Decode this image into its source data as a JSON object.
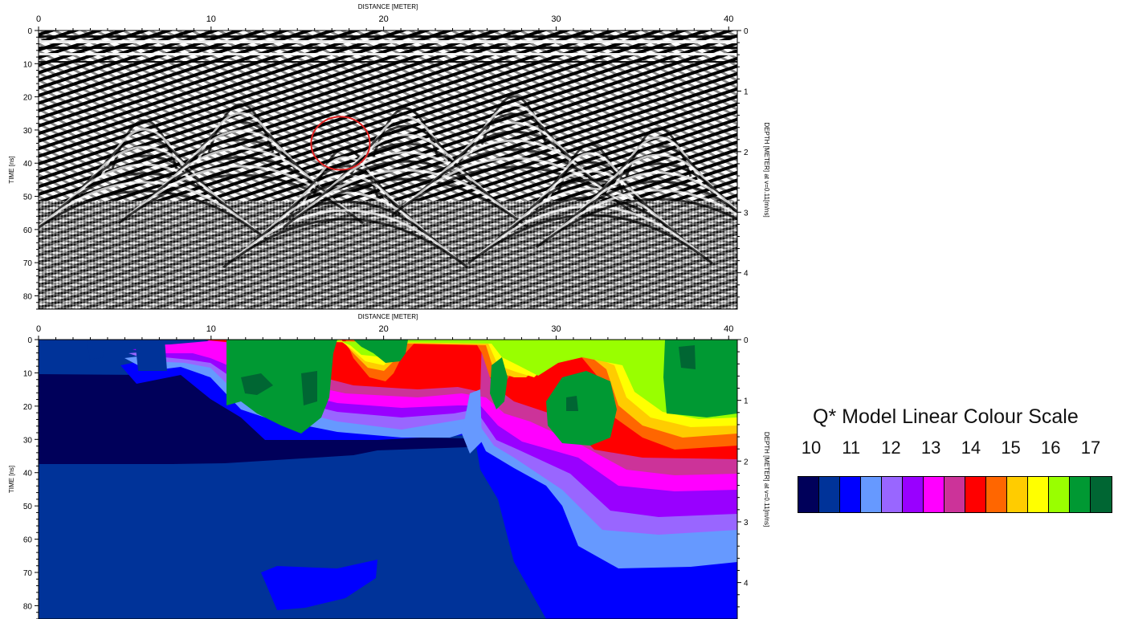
{
  "chart_data": [
    {
      "type": "heatmap",
      "name": "gpr-radargram",
      "xlabel": "DISTANCE [METER]",
      "ylabel": "TIME [ns]",
      "y2label": "DEPTH [METER] at v=0.11[m/ns]",
      "xlim": [
        0,
        40.5
      ],
      "ylim": [
        0,
        84
      ],
      "y2lim": [
        0,
        4.6
      ],
      "xticks": [
        "0",
        "10",
        "20",
        "30",
        "40"
      ],
      "yticks": [
        "0",
        "10",
        "20",
        "30",
        "40",
        "50",
        "60",
        "70",
        "80"
      ],
      "y2ticks": [
        "0",
        "1",
        "2",
        "3",
        "4"
      ],
      "colormap": "grayscale",
      "annotation": {
        "shape": "circle",
        "color": "#e02020",
        "center": [
          17.5,
          34
        ],
        "radius_x": 1.7,
        "radius_y": 8
      }
    },
    {
      "type": "heatmap",
      "name": "q-model-section",
      "xlabel": "DISTANCE [METER]",
      "ylabel": "TIME [ns]",
      "y2label": "DEPTH [METER] at v=0.11[m/ns]",
      "xlim": [
        0,
        40.5
      ],
      "ylim": [
        0,
        84
      ],
      "y2lim": [
        0,
        4.6
      ],
      "xticks": [
        "0",
        "10",
        "20",
        "30",
        "40"
      ],
      "yticks": [
        "0",
        "10",
        "20",
        "30",
        "40",
        "50",
        "60",
        "70",
        "80"
      ],
      "y2ticks": [
        "0",
        "1",
        "2",
        "3",
        "4"
      ],
      "zlim": [
        10,
        17
      ],
      "colormap": "q-star-linear"
    }
  ],
  "legend": {
    "title": "Q* Model Linear Colour Scale",
    "tick_labels": [
      "10",
      "11",
      "12",
      "13",
      "14",
      "15",
      "16",
      "17"
    ],
    "colors": [
      "#00005a",
      "#003399",
      "#0000ff",
      "#6699ff",
      "#9966ff",
      "#9900ff",
      "#ff00ff",
      "#cc3399",
      "#ff0000",
      "#ff6600",
      "#ffcc00",
      "#ffff00",
      "#99ff00",
      "#009933",
      "#006633"
    ]
  }
}
